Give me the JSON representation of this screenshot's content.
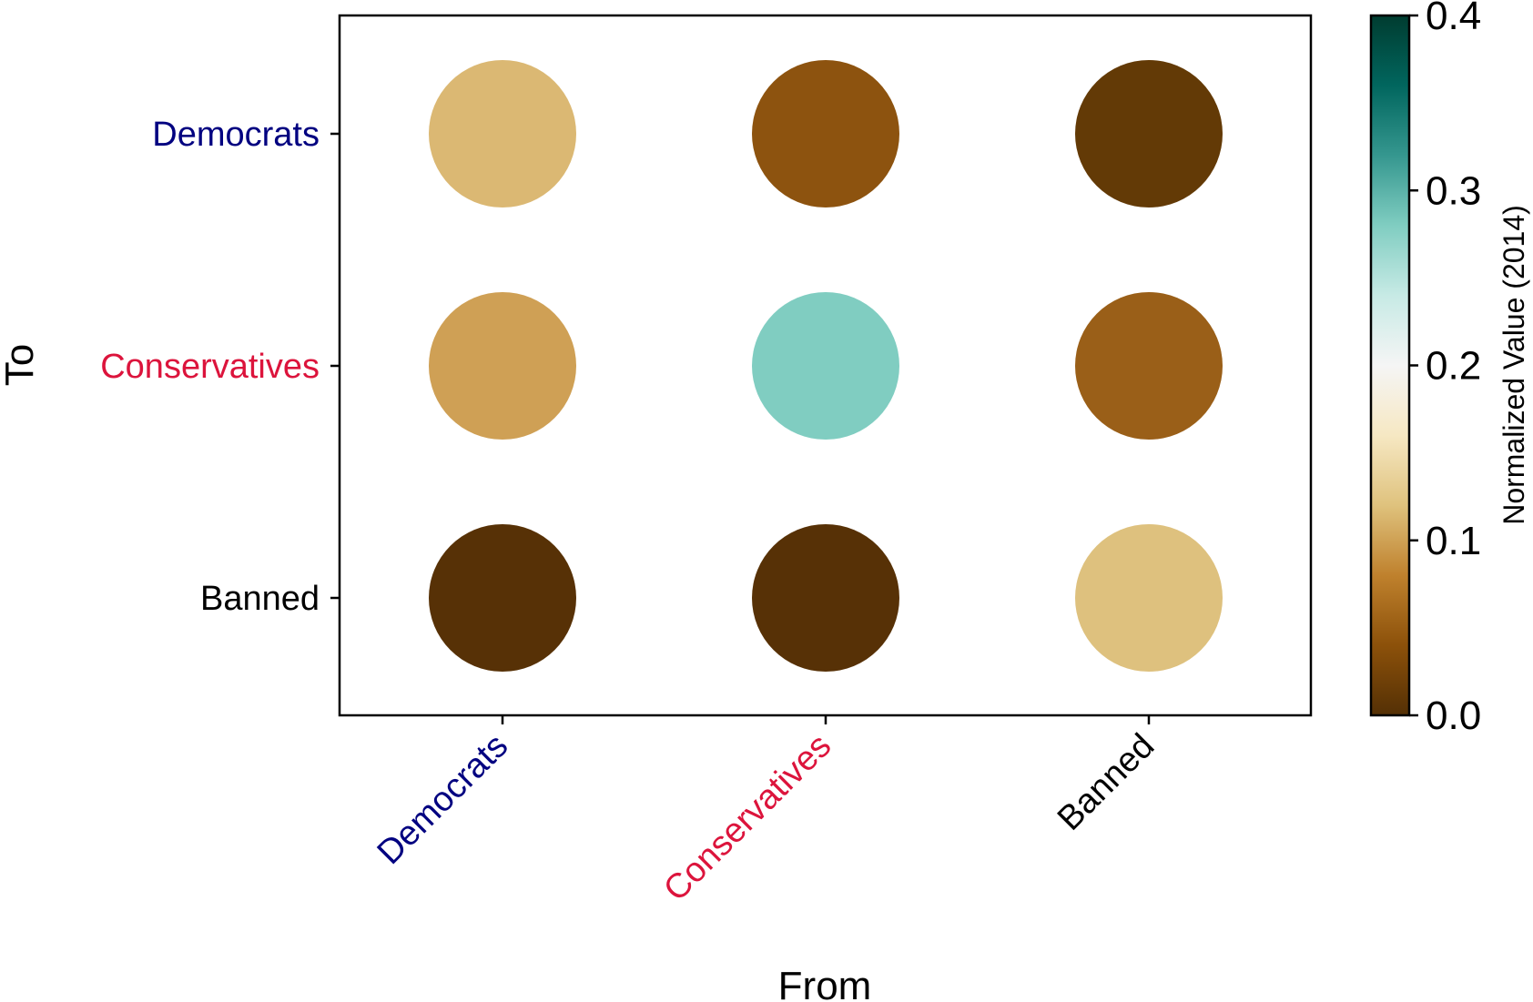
{
  "chart_data": {
    "type": "heatmap",
    "style": "bubble",
    "xlabel": "From",
    "ylabel": "To",
    "x_categories": [
      {
        "label": "Democrats",
        "color": "#000080"
      },
      {
        "label": "Conservatives",
        "color": "#DC143C"
      },
      {
        "label": "Banned",
        "color": "#000000"
      }
    ],
    "y_categories": [
      {
        "label": "Democrats",
        "color": "#000080"
      },
      {
        "label": "Conservatives",
        "color": "#DC143C"
      },
      {
        "label": "Banned",
        "color": "#000000"
      }
    ],
    "cells": [
      {
        "from": "Democrats",
        "to": "Democrats",
        "value": 0.14,
        "color": "#DBB873"
      },
      {
        "from": "Conservatives",
        "to": "Democrats",
        "value": 0.055,
        "color": "#8D530F"
      },
      {
        "from": "Banned",
        "to": "Democrats",
        "value": 0.01,
        "color": "#633A06"
      },
      {
        "from": "Democrats",
        "to": "Conservatives",
        "value": 0.12,
        "color": "#CFA055"
      },
      {
        "from": "Conservatives",
        "to": "Conservatives",
        "value": 0.29,
        "color": "#80CDC1"
      },
      {
        "from": "Banned",
        "to": "Conservatives",
        "value": 0.065,
        "color": "#9A5F18"
      },
      {
        "from": "Democrats",
        "to": "Banned",
        "value": 0.0,
        "color": "#573106"
      },
      {
        "from": "Conservatives",
        "to": "Banned",
        "value": 0.0,
        "color": "#573106"
      },
      {
        "from": "Banned",
        "to": "Banned",
        "value": 0.145,
        "color": "#DEC17E"
      }
    ],
    "colorbar": {
      "label": "Normalized Value (2014)",
      "min": 0.0,
      "max": 0.4,
      "ticks": [
        "0.0",
        "0.1",
        "0.2",
        "0.3",
        "0.4"
      ],
      "colormap": "BrBG",
      "stops": [
        "#543005",
        "#8C510A",
        "#BF812D",
        "#DFC27D",
        "#F6E8C3",
        "#F5F5F5",
        "#C7EAE5",
        "#80CDC1",
        "#35978F",
        "#01665E",
        "#003C30"
      ]
    }
  }
}
